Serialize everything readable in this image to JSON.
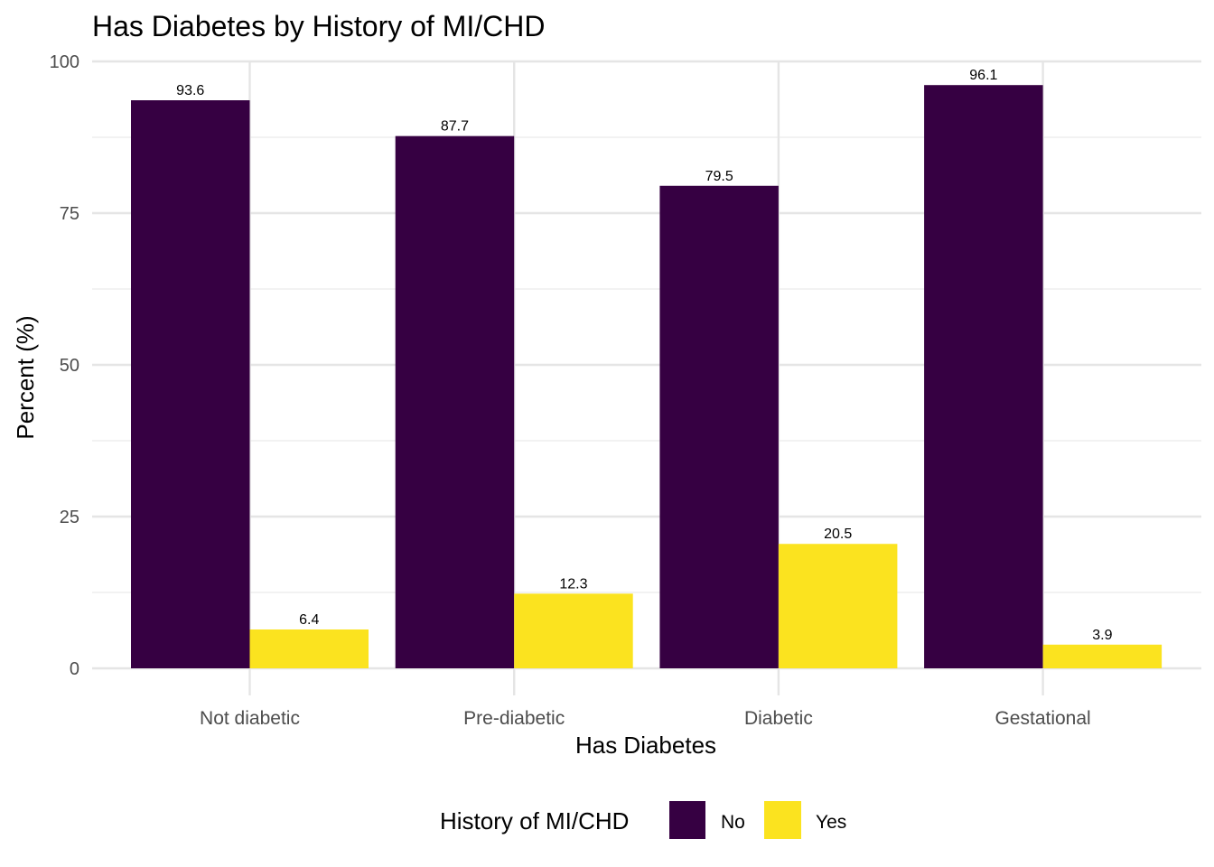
{
  "chart_data": {
    "type": "bar",
    "title": "Has Diabetes by History of MI/CHD",
    "xlabel": "Has Diabetes",
    "ylabel": "Percent (%)",
    "categories": [
      "Not diabetic",
      "Pre-diabetic",
      "Diabetic",
      "Gestational"
    ],
    "series": [
      {
        "name": "No",
        "color": "#360042",
        "values": [
          93.6,
          87.7,
          79.5,
          96.1
        ],
        "labels": [
          "93.6",
          "87.7",
          "79.5",
          "96.1"
        ]
      },
      {
        "name": "Yes",
        "color": "#fbe31f",
        "values": [
          6.4,
          12.3,
          20.5,
          3.9
        ],
        "labels": [
          "6.4",
          "12.3",
          "20.5",
          "3.9"
        ]
      }
    ],
    "ylim": [
      0,
      100
    ],
    "yticks": [
      0,
      25,
      50,
      75,
      100
    ],
    "ytick_labels": [
      "0",
      "25",
      "50",
      "75",
      "100"
    ],
    "grid": true,
    "legend": {
      "title": "History of MI/CHD",
      "position": "bottom"
    }
  }
}
